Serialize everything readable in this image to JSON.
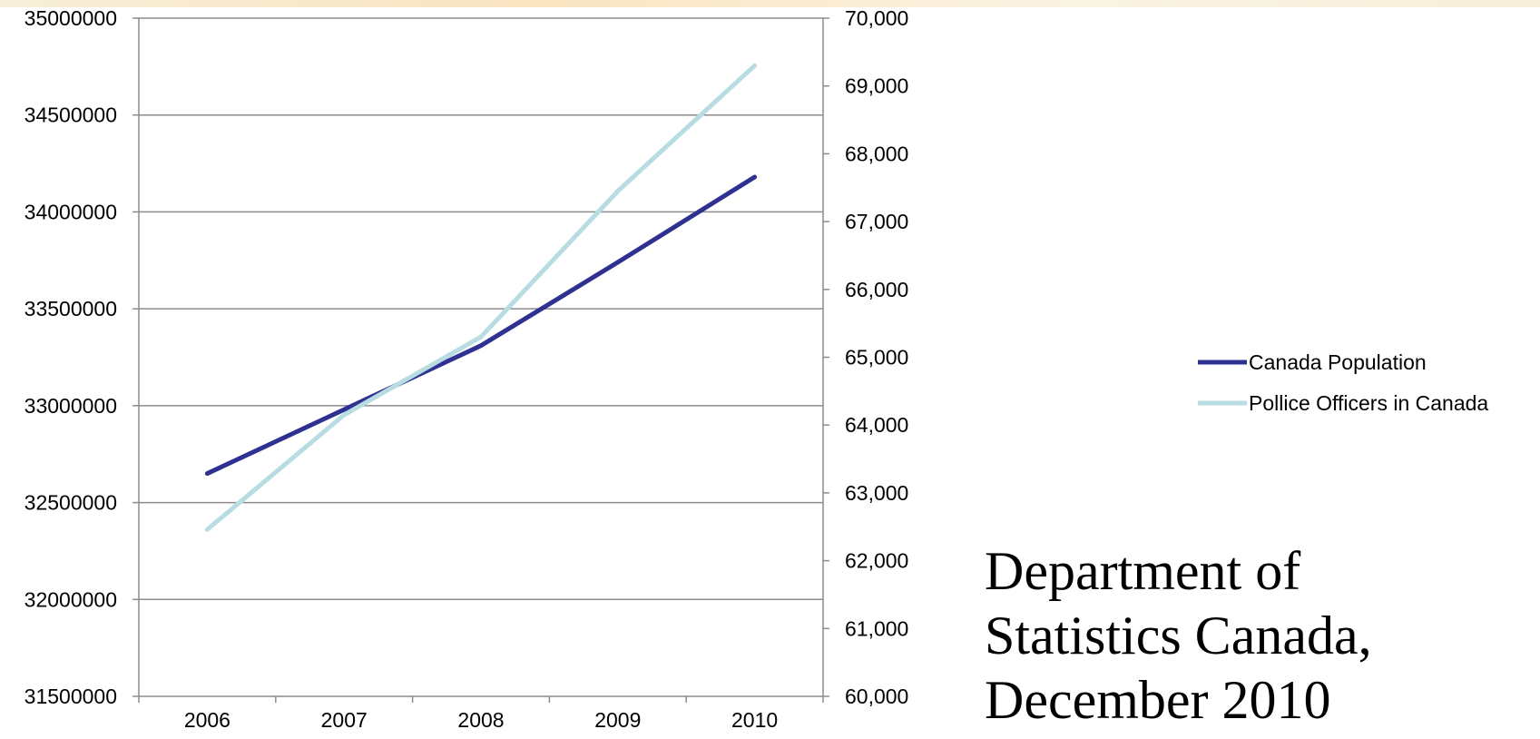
{
  "chart_data": {
    "type": "line",
    "title": "",
    "categories": [
      "2006",
      "2007",
      "2008",
      "2009",
      "2010"
    ],
    "y_left": {
      "ticks": [
        "35000000",
        "34500000",
        "34000000",
        "33500000",
        "33000000",
        "32500000",
        "32000000",
        "31500000"
      ],
      "ylim": [
        31500000,
        35000000
      ]
    },
    "y_right": {
      "ticks": [
        "70,000",
        "69,000",
        "68,000",
        "67,000",
        "66,000",
        "65,000",
        "64,000",
        "63,000",
        "62,000",
        "61,000",
        "60,000"
      ],
      "ylim": [
        60000,
        70000
      ]
    },
    "grid": true,
    "legend_position": "right",
    "series": [
      {
        "name": "Canada Population",
        "axis": "left",
        "color": "#2e3192",
        "values": [
          32650000,
          32980000,
          33310000,
          33740000,
          34180000
        ]
      },
      {
        "name": "Pollice Officers in Canada",
        "axis": "right",
        "color": "#b7dde3",
        "values": [
          62460,
          64150,
          65300,
          67450,
          69300
        ]
      }
    ]
  },
  "source": {
    "lines": [
      "Department of",
      "Statistics Canada,",
      "December 2010"
    ]
  }
}
